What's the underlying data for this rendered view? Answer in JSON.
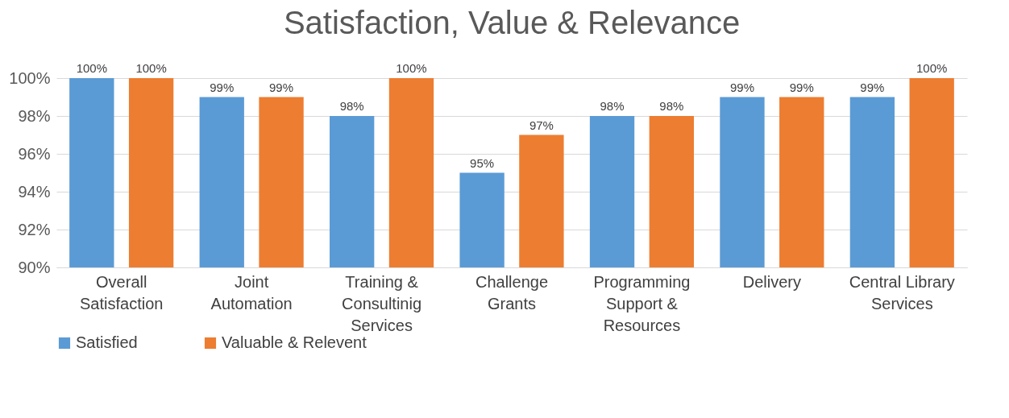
{
  "chart_data": {
    "type": "bar",
    "title": "Satisfaction, Value & Relevance",
    "categories": [
      "Overall Satisfaction",
      "Joint Automation",
      "Training & Consultinig Services",
      "Challenge Grants",
      "Programming Support & Resources",
      "Delivery",
      "Central Library Services"
    ],
    "series": [
      {
        "name": "Satisfied",
        "color": "#5b9bd5",
        "values": [
          100,
          99,
          98,
          95,
          98,
          99,
          99
        ],
        "value_labels": [
          "100%",
          "99%",
          "98%",
          "95%",
          "98%",
          "99%",
          "99%"
        ]
      },
      {
        "name": "Valuable & Relevent",
        "color": "#ed7d31",
        "values": [
          100,
          99,
          100,
          97,
          98,
          99,
          100
        ],
        "value_labels": [
          "100%",
          "99%",
          "100%",
          "97%",
          "98%",
          "99%",
          "100%"
        ]
      }
    ],
    "ylim": [
      90,
      100
    ],
    "yticks": [
      {
        "value": 90,
        "label": "90%"
      },
      {
        "value": 92,
        "label": "92%"
      },
      {
        "value": 94,
        "label": "94%"
      },
      {
        "value": 96,
        "label": "96%"
      },
      {
        "value": 98,
        "label": "98%"
      },
      {
        "value": 100,
        "label": "100%"
      }
    ],
    "grid": "y",
    "legend": "bottom"
  }
}
